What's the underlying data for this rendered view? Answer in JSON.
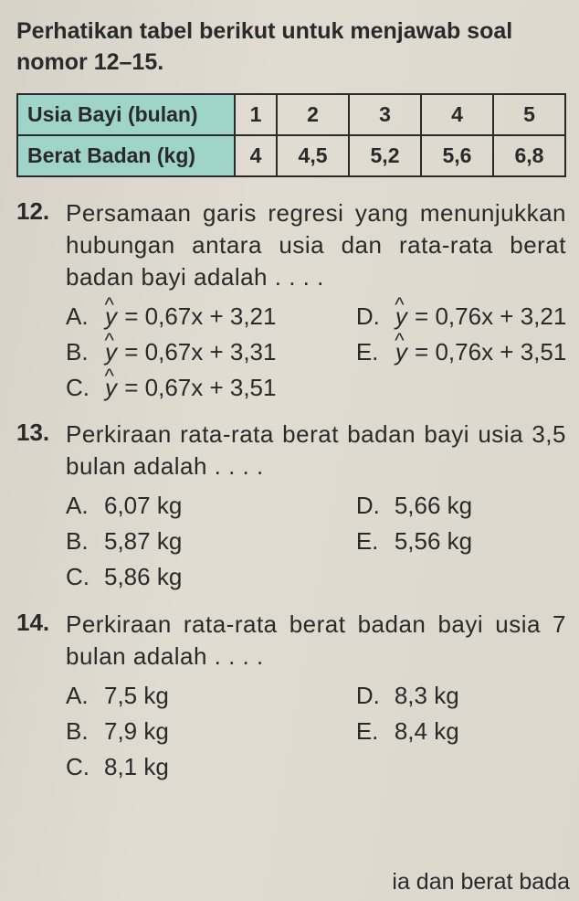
{
  "intro": "Perhatikan tabel berikut untuk menjawab soal nomor 12–15.",
  "table": {
    "row1_label": "Usia Bayi (bulan)",
    "row1_cells": [
      "1",
      "2",
      "3",
      "4",
      "5"
    ],
    "row2_label": "Berat Badan (kg)",
    "row2_cells": [
      "4",
      "4,5",
      "5,2",
      "5,6",
      "6,8"
    ],
    "header_bg": "#9fd4c8",
    "border_color": "#2a2a2a"
  },
  "q12": {
    "num": "12.",
    "text": "Persamaan garis regresi yang menunjukkan hubungan antara usia dan rata-rata berat badan bayi adalah . . . .",
    "A": " = 0,67x + 3,21",
    "B": " = 0,67x + 3,31",
    "C": " = 0,67x + 3,51",
    "D": " = 0,76x + 3,21",
    "E": " = 0,76x + 3,51",
    "lA": "A.",
    "lB": "B.",
    "lC": "C.",
    "lD": "D.",
    "lE": "E.",
    "y": "y"
  },
  "q13": {
    "num": "13.",
    "text": "Perkiraan rata-rata berat badan bayi usia 3,5 bulan adalah . . . .",
    "A": "6,07 kg",
    "B": "5,87 kg",
    "C": "5,86 kg",
    "D": "5,66 kg",
    "E": "5,56 kg",
    "lA": "A.",
    "lB": "B.",
    "lC": "C.",
    "lD": "D.",
    "lE": "E."
  },
  "q14": {
    "num": "14.",
    "text": "Perkiraan rata-rata berat badan bayi usia 7 bulan adalah . . . .",
    "A": "7,5 kg",
    "B": "7,9 kg",
    "C": "8,1 kg",
    "D": "8,3 kg",
    "E": "8,4 kg",
    "lA": "A.",
    "lB": "B.",
    "lC": "C.",
    "lD": "D.",
    "lE": "E."
  },
  "cutoff": "ia dan berat bada"
}
